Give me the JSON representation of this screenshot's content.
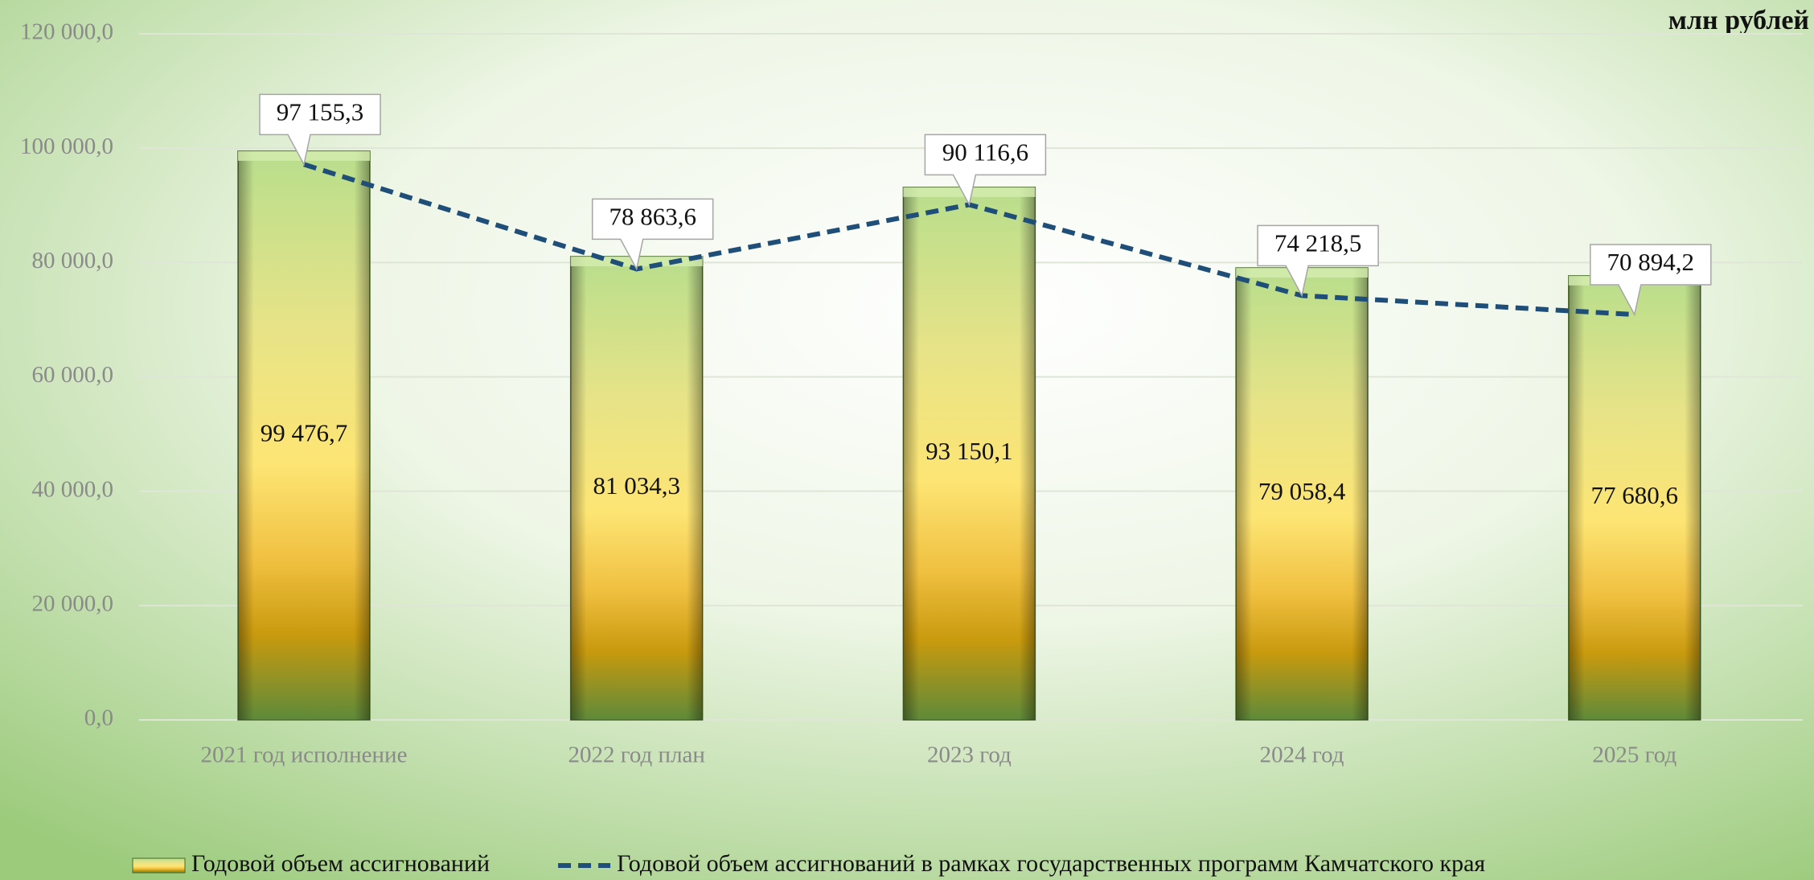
{
  "chart_data": {
    "type": "bar",
    "unit_label": "млн рублей",
    "categories": [
      "2021 год исполнение",
      "2022 год план",
      "2023 год",
      "2024 год",
      "2025 год"
    ],
    "series": [
      {
        "name": "Годовой объем ассигнований",
        "type": "bar",
        "color": "#f2d060",
        "values": [
          99476.7,
          81034.3,
          93150.1,
          79058.4,
          77680.6
        ],
        "value_labels": [
          "99 476,7",
          "81 034,3",
          "93 150,1",
          "79 058,4",
          "77 680,6"
        ]
      },
      {
        "name": "Годовой объем ассигнований в рамках государственных программ Камчатского края",
        "type": "line",
        "color": "#1f4e79",
        "values": [
          97155.3,
          78863.6,
          90116.6,
          74218.5,
          70894.2
        ],
        "value_labels": [
          "97 155,3",
          "78 863,6",
          "90 116,6",
          "74 218,5",
          "70 894,2"
        ]
      }
    ],
    "ylim": [
      0,
      120000
    ],
    "yticks": [
      {
        "value": 0,
        "label": "0,0"
      },
      {
        "value": 20000,
        "label": "20 000,0"
      },
      {
        "value": 40000,
        "label": "40 000,0"
      },
      {
        "value": 60000,
        "label": "60 000,0"
      },
      {
        "value": 80000,
        "label": "80 000,0"
      },
      {
        "value": 100000,
        "label": "100 000,0"
      },
      {
        "value": 120000,
        "label": "120 000,0"
      }
    ],
    "grid": true,
    "legend": "bottom"
  }
}
